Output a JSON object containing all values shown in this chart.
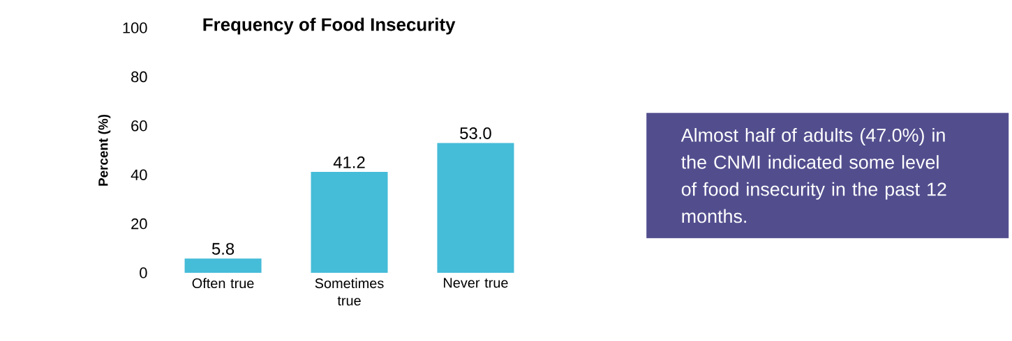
{
  "chart_data": {
    "type": "bar",
    "title": "Frequency of Food Insecurity",
    "ylabel": "Percent (%)",
    "categories": [
      "Often true",
      "Sometimes true",
      "Never true"
    ],
    "values": [
      5.8,
      41.2,
      53.0
    ],
    "value_labels": [
      "5.8",
      "41.2",
      "53.0"
    ],
    "color": "#45bcd8",
    "ylim": [
      0,
      100
    ],
    "yticks": [
      0,
      20,
      40,
      60,
      80,
      100
    ],
    "annotations": [
      "Almost half of adults (47.0%) in the CNMI indicated some level of food insecurity in the past 12 months."
    ]
  }
}
